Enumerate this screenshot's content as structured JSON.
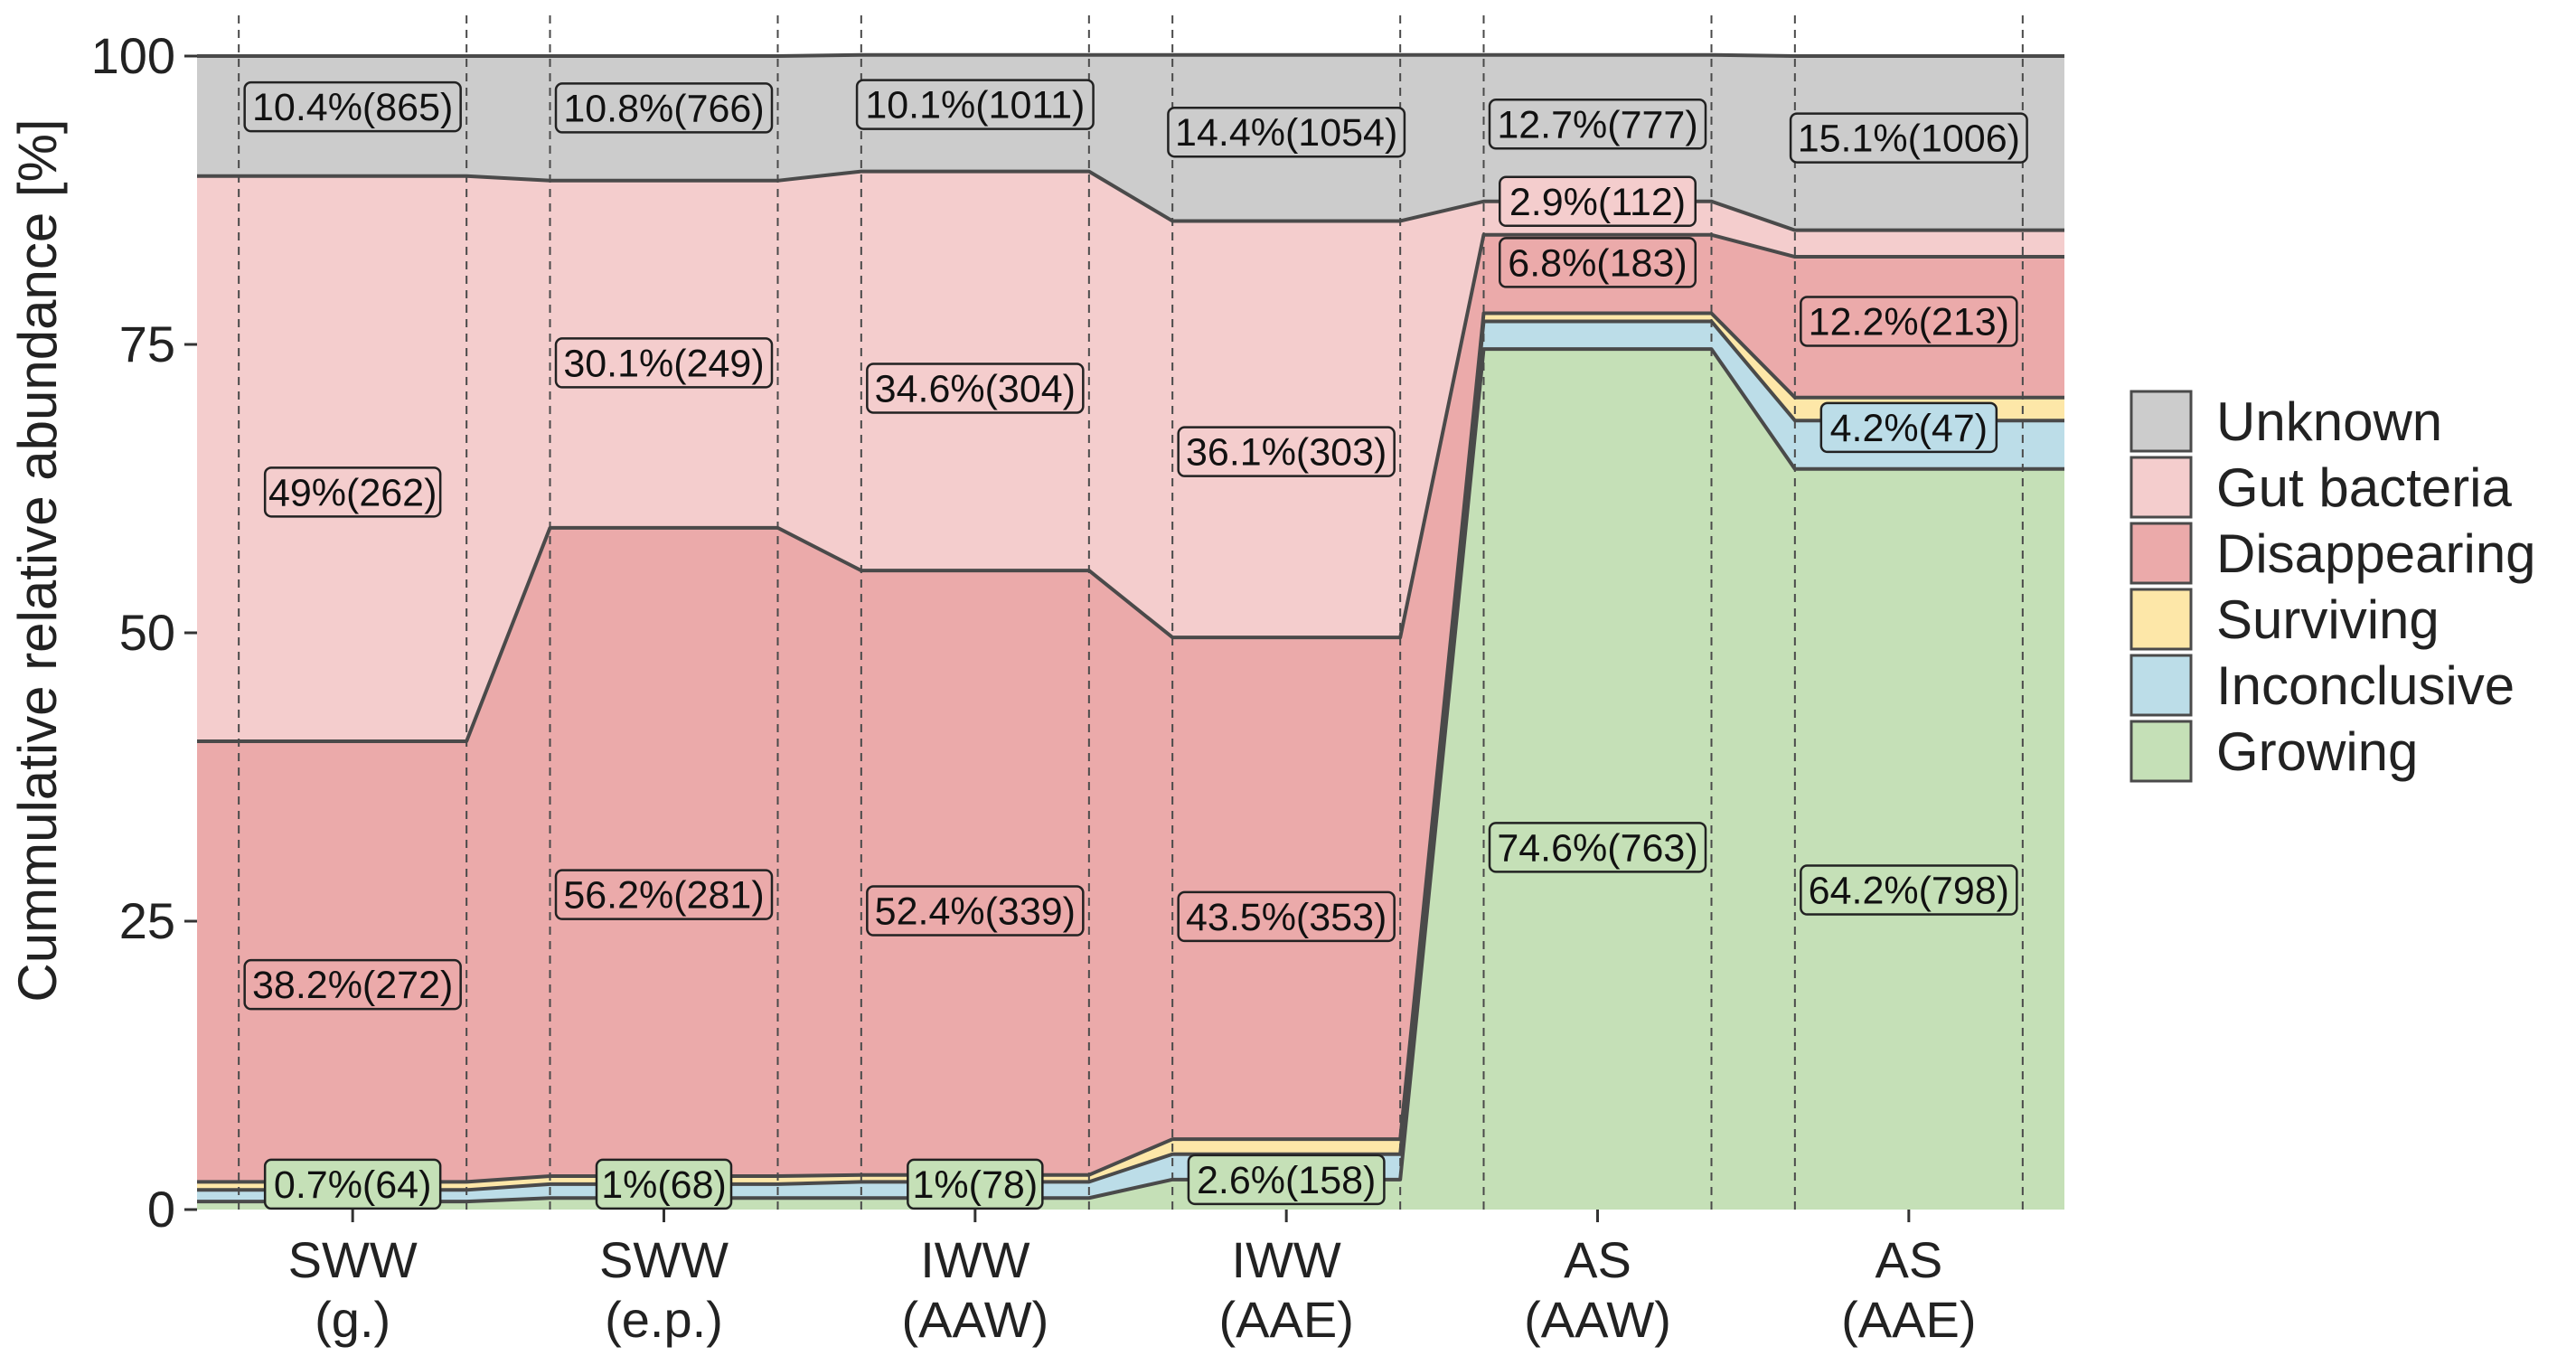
{
  "chart_data": {
    "type": "area",
    "ylabel": "Cummulative relative abundance [%]",
    "xlabel": "",
    "ylim": [
      0,
      100
    ],
    "yticks": [
      0,
      25,
      50,
      75,
      100
    ],
    "grid": false,
    "legend_position": "right",
    "categories": [
      [
        "SWW",
        "(g.)"
      ],
      [
        "SWW",
        "(e.p.)"
      ],
      [
        "IWW",
        "(AAW)"
      ],
      [
        "IWW",
        "(AAE)"
      ],
      [
        "AS",
        "(AAW)"
      ],
      [
        "AS",
        "(AAE)"
      ]
    ],
    "series": [
      {
        "name": "Growing",
        "color": "#c5e0b7",
        "values": [
          0.7,
          1.0,
          1.0,
          2.6,
          74.6,
          64.2
        ]
      },
      {
        "name": "Inconclusive",
        "color": "#bcdde8",
        "values": [
          1.0,
          1.2,
          1.4,
          2.2,
          2.4,
          4.2
        ]
      },
      {
        "name": "Surviving",
        "color": "#fde7a8",
        "values": [
          0.7,
          0.7,
          0.6,
          1.3,
          0.7,
          2.0
        ]
      },
      {
        "name": "Disappearing",
        "color": "#ebaaaa",
        "values": [
          38.2,
          56.2,
          52.4,
          43.5,
          6.8,
          12.2
        ]
      },
      {
        "name": "Gut bacteria",
        "color": "#f4cdcd",
        "values": [
          49.0,
          30.1,
          34.6,
          36.1,
          2.9,
          2.3
        ]
      },
      {
        "name": "Unknown",
        "color": "#cccccc",
        "values": [
          10.4,
          10.8,
          10.1,
          14.4,
          12.7,
          15.1
        ]
      }
    ],
    "labels": [
      {
        "text": "10.4%(865)",
        "category": 0,
        "y": 95.6,
        "series": "Unknown"
      },
      {
        "text": "10.8%(766)",
        "category": 1,
        "y": 95.5,
        "series": "Unknown"
      },
      {
        "text": "10.1%(1011)",
        "category": 2,
        "y": 95.8,
        "series": "Unknown"
      },
      {
        "text": "14.4%(1054)",
        "category": 3,
        "y": 93.4,
        "series": "Unknown"
      },
      {
        "text": "12.7%(777)",
        "category": 4,
        "y": 94.1,
        "series": "Unknown"
      },
      {
        "text": "15.1%(1006)",
        "category": 5,
        "y": 92.9,
        "series": "Unknown"
      },
      {
        "text": "49%(262)",
        "category": 0,
        "y": 62.2,
        "series": "Gut bacteria"
      },
      {
        "text": "30.1%(249)",
        "category": 1,
        "y": 73.4,
        "series": "Gut bacteria"
      },
      {
        "text": "34.6%(304)",
        "category": 2,
        "y": 71.2,
        "series": "Gut bacteria"
      },
      {
        "text": "36.1%(303)",
        "category": 3,
        "y": 65.7,
        "series": "Gut bacteria"
      },
      {
        "text": "2.9%(112)",
        "category": 4,
        "y": 87.4,
        "series": "Gut bacteria"
      },
      {
        "text": "38.2%(272)",
        "category": 0,
        "y": 19.5,
        "series": "Disappearing"
      },
      {
        "text": "56.2%(281)",
        "category": 1,
        "y": 27.3,
        "series": "Disappearing"
      },
      {
        "text": "52.4%(339)",
        "category": 2,
        "y": 25.9,
        "series": "Disappearing"
      },
      {
        "text": "43.5%(353)",
        "category": 3,
        "y": 25.4,
        "series": "Disappearing"
      },
      {
        "text": "6.8%(183)",
        "category": 4,
        "y": 82.1,
        "series": "Disappearing"
      },
      {
        "text": "12.2%(213)",
        "category": 5,
        "y": 77.0,
        "series": "Disappearing"
      },
      {
        "text": "4.2%(47)",
        "category": 5,
        "y": 67.8,
        "series": "Inconclusive"
      },
      {
        "text": "0.7%(64)",
        "category": 0,
        "y": 2.2,
        "series": "Growing"
      },
      {
        "text": "1%(68)",
        "category": 1,
        "y": 2.2,
        "series": "Growing"
      },
      {
        "text": "1%(78)",
        "category": 2,
        "y": 2.2,
        "series": "Growing"
      },
      {
        "text": "2.6%(158)",
        "category": 3,
        "y": 2.6,
        "series": "Growing"
      },
      {
        "text": "74.6%(763)",
        "category": 4,
        "y": 31.4,
        "series": "Growing"
      },
      {
        "text": "64.2%(798)",
        "category": 5,
        "y": 27.7,
        "series": "Growing"
      }
    ]
  }
}
